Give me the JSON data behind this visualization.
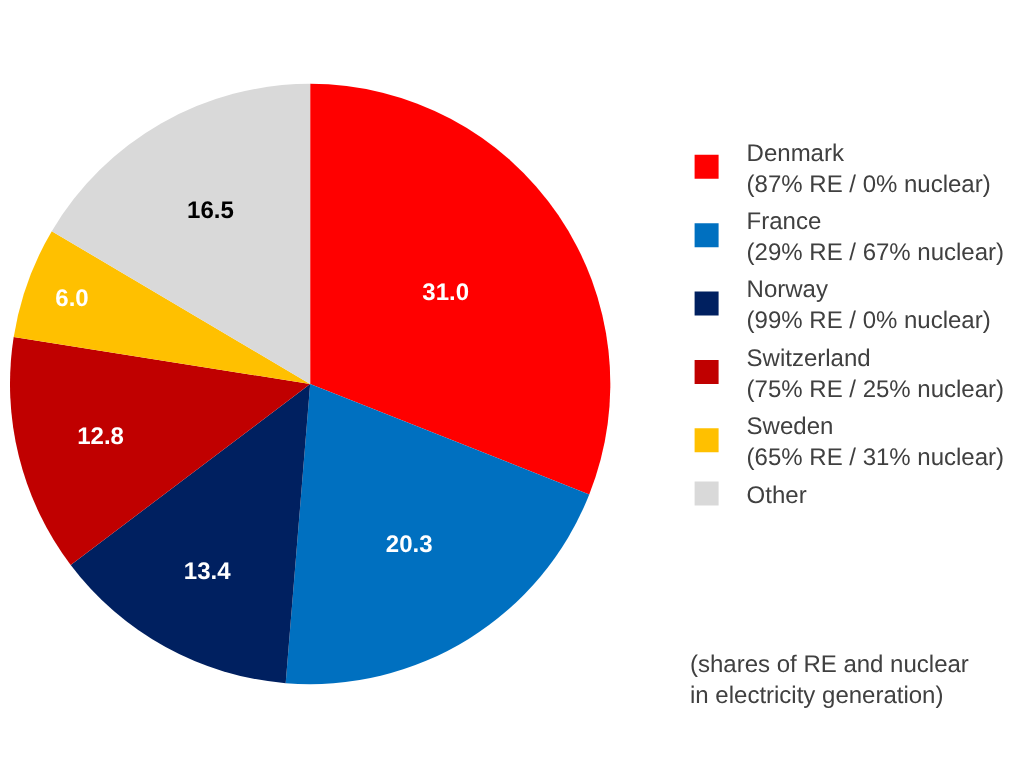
{
  "chart_data": {
    "type": "pie",
    "categories": [
      "Denmark\n(87% RE / 0% nuclear)",
      "France\n(29% RE / 67% nuclear)",
      "Norway\n(99% RE / 0% nuclear)",
      "Switzerland\n(75% RE / 25% nuclear)",
      "Sweden\n(65% RE / 31% nuclear)",
      "Other"
    ],
    "values": [
      31.0,
      20.3,
      13.4,
      12.8,
      6.0,
      16.5
    ],
    "value_labels": [
      "31.0",
      "20.3",
      "13.4",
      "12.8",
      "6.0",
      "16.5"
    ],
    "colors": [
      "#ff0000",
      "#0070c0",
      "#002060",
      "#c00000",
      "#ffc000",
      "#d9d9d9"
    ],
    "legend": "right",
    "annotations": [
      "(shares of RE and nuclear\nin electricity generation)"
    ]
  }
}
